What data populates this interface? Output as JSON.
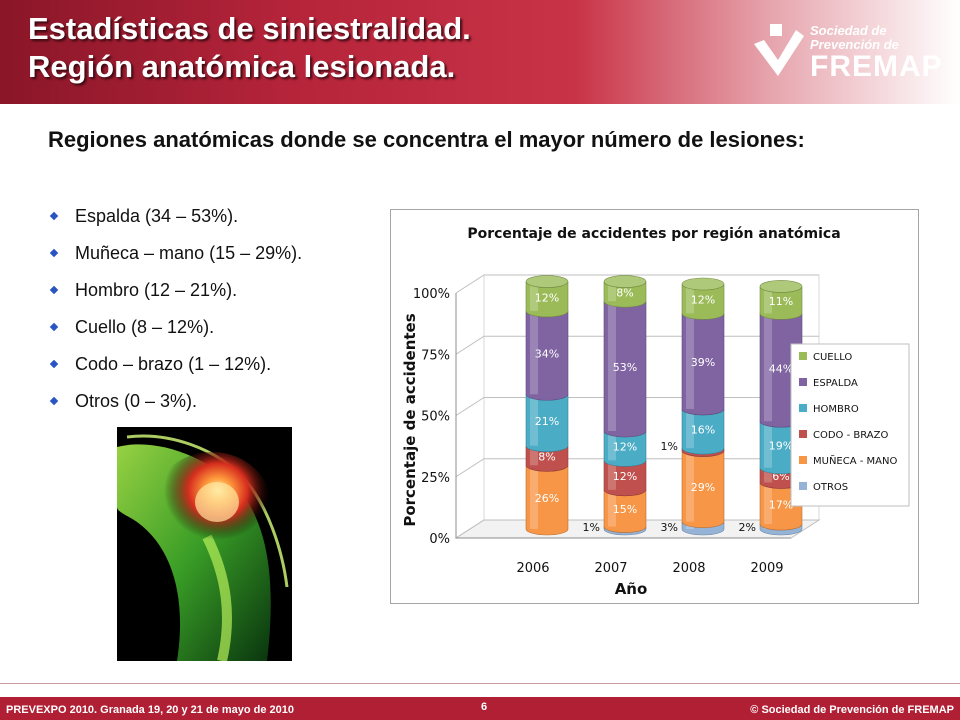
{
  "slide": {
    "title_line1": "Estadísticas de siniestralidad.",
    "title_line2": "Región anatómica lesionada.",
    "logo": {
      "line1": "Sociedad de",
      "line2": "Prevención de",
      "line3": "FREMAP"
    },
    "intro": "Regiones anatómicas donde se concentra el mayor número de lesiones:",
    "bullets": [
      "Espalda (34 – 53%).",
      "Muñeca – mano (15 – 29%).",
      "Hombro (12 – 21%).",
      "Cuello (8 – 12%).",
      "Codo – brazo (1 – 12%).",
      "Otros (0 – 3%)."
    ],
    "footer": {
      "left": "PREVEXPO 2010. Granada 19, 20 y 21 de mayo de 2010",
      "page": "6",
      "right": "© Sociedad de Prevención de FREMAP"
    }
  },
  "chart_data": {
    "type": "bar",
    "stacked": true,
    "percent": true,
    "title": "Porcentaje de accidentes por región anatómica",
    "xlabel": "Año",
    "ylabel": "Porcentaje de accidentes",
    "categories": [
      "2006",
      "2007",
      "2008",
      "2009"
    ],
    "yticks": [
      "0%",
      "25%",
      "50%",
      "75%",
      "100%"
    ],
    "ylim": [
      0,
      100
    ],
    "legend_position": "right",
    "series": [
      {
        "name": "OTROS",
        "color": "#95b3d7",
        "values": [
          0,
          1,
          3,
          2
        ],
        "labels": [
          "",
          "1%",
          "3%",
          "2%"
        ]
      },
      {
        "name": "MUÑECA - MANO",
        "color": "#f79646",
        "values": [
          26,
          15,
          29,
          17
        ],
        "labels": [
          "26%",
          "15%",
          "29%",
          "17%"
        ]
      },
      {
        "name": "CODO - BRAZO",
        "color": "#c0504d",
        "values": [
          8,
          12,
          1,
          6
        ],
        "labels": [
          "8%",
          "12%",
          "1%",
          "6%"
        ]
      },
      {
        "name": "HOMBRO",
        "color": "#4bacc6",
        "values": [
          21,
          12,
          16,
          19
        ],
        "labels": [
          "21%",
          "12%",
          "16%",
          "19%"
        ]
      },
      {
        "name": "ESPALDA",
        "color": "#8064a2",
        "values": [
          34,
          53,
          39,
          44
        ],
        "labels": [
          "34%",
          "53%",
          "39%",
          "44%"
        ]
      },
      {
        "name": "CUELLO",
        "color": "#9bbb59",
        "values": [
          12,
          8,
          12,
          11
        ],
        "labels": [
          "12%",
          "8%",
          "12%",
          "11%"
        ]
      }
    ],
    "legend_order": [
      "CUELLO",
      "ESPALDA",
      "HOMBRO",
      "CODO - BRAZO",
      "MUÑECA - MANO",
      "OTROS"
    ]
  }
}
